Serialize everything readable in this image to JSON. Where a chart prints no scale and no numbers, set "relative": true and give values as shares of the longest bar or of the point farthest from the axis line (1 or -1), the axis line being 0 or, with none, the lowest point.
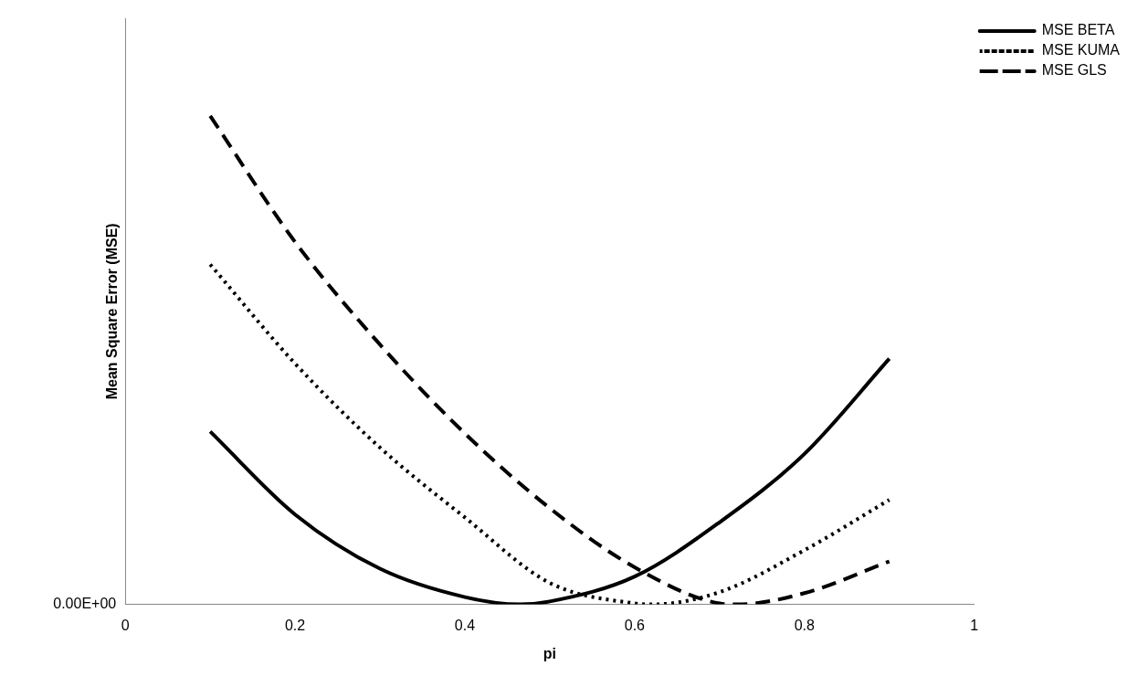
{
  "chart_data": {
    "type": "line",
    "xlabel": "pi",
    "ylabel": "Mean Square Error (MSE)",
    "relative": true,
    "xlim": [
      0,
      1
    ],
    "xticks": [
      0,
      0.2,
      0.4,
      0.6,
      0.8,
      1
    ],
    "grid": false,
    "legend": "top right",
    "marker": "none",
    "annotations": [
      "0.00E+00"
    ],
    "series": [
      {
        "name": "MSE BETA",
        "color": "#000000",
        "line_style": "solid",
        "x": [
          0.1,
          0.2,
          0.3,
          0.4,
          0.465,
          0.5,
          0.6,
          0.7,
          0.8,
          0.9
        ],
        "values": [
          0.354,
          0.184,
          0.073,
          0.015,
          0,
          0.006,
          0.057,
          0.168,
          0.308,
          0.503
        ]
      },
      {
        "name": "MSE KUMA",
        "color": "#000000",
        "line_style": "dotted",
        "x": [
          0.1,
          0.2,
          0.3,
          0.4,
          0.5,
          0.6,
          0.62,
          0.7,
          0.8,
          0.9
        ],
        "values": [
          0.696,
          0.493,
          0.321,
          0.178,
          0.044,
          0.002,
          0,
          0.025,
          0.111,
          0.214
        ]
      },
      {
        "name": "MSE GLS",
        "color": "#000000",
        "line_style": "dashed",
        "x": [
          0.1,
          0.2,
          0.3,
          0.4,
          0.5,
          0.6,
          0.7,
          0.72,
          0.8,
          0.9
        ],
        "values": [
          1,
          0.742,
          0.532,
          0.35,
          0.197,
          0.076,
          0.002,
          0,
          0.023,
          0.088
        ]
      }
    ]
  }
}
